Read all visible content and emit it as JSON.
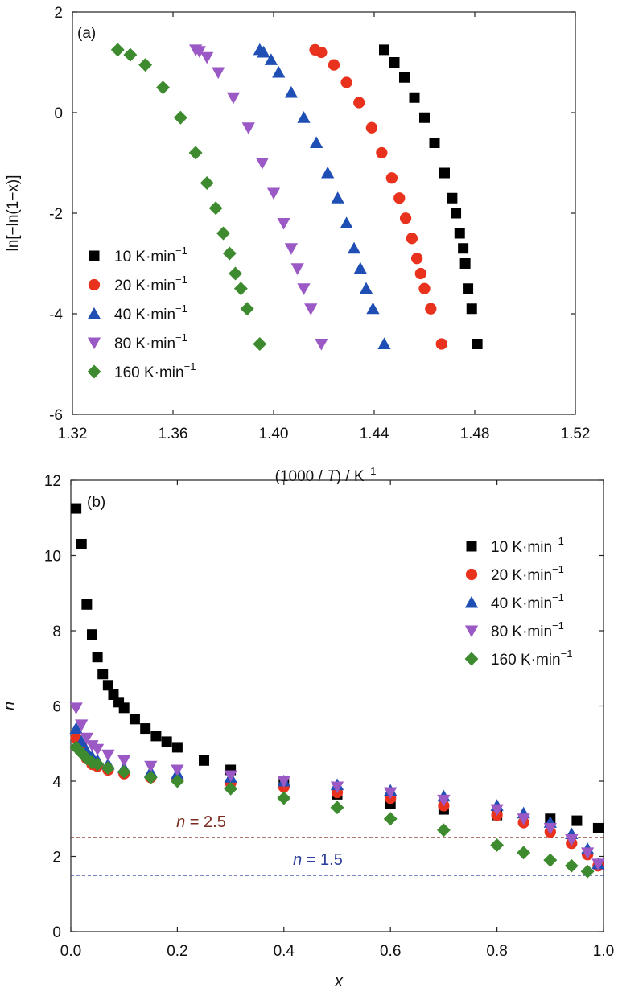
{
  "chart_data": [
    {
      "type": "scatter",
      "panel_label": "(a)",
      "xlabel_parts": [
        "(1000 / ",
        "T",
        ") / K",
        "−1"
      ],
      "ylabel": "ln[−ln(1−x)]",
      "xlim": [
        1.32,
        1.52
      ],
      "ylim": [
        -6,
        2
      ],
      "x_ticks": [
        1.32,
        1.36,
        1.4,
        1.44,
        1.48,
        1.52
      ],
      "x_tick_labels": [
        "1.32",
        "1.36",
        "1.40",
        "1.44",
        "1.48",
        "1.52"
      ],
      "y_ticks": [
        -6,
        -4,
        -2,
        0,
        2
      ],
      "y_tick_labels": [
        "-6",
        "-4",
        "-2",
        "0",
        "2"
      ],
      "legend_position": "lower-left",
      "series": [
        {
          "name": "10 K·min−1",
          "legend_main": "10 K·min",
          "legend_sup": "−1",
          "marker": "square",
          "color": "#000000",
          "x": [
            1.481,
            1.4788,
            1.4773,
            1.4762,
            1.4754,
            1.474,
            1.4725,
            1.471,
            1.468,
            1.464,
            1.46,
            1.456,
            1.452,
            1.448,
            1.444
          ],
          "y": [
            -4.6,
            -3.9,
            -3.5,
            -3.0,
            -2.7,
            -2.4,
            -2.0,
            -1.7,
            -1.2,
            -0.6,
            -0.1,
            0.3,
            0.7,
            1.0,
            1.25
          ]
        },
        {
          "name": "20 K·min−1",
          "legend_main": "20 K·min",
          "legend_sup": "−1",
          "marker": "circle",
          "color": "#e8321e",
          "x": [
            1.4668,
            1.4625,
            1.46,
            1.4585,
            1.457,
            1.455,
            1.4525,
            1.45,
            1.447,
            1.443,
            1.439,
            1.434,
            1.429,
            1.424,
            1.419,
            1.4165
          ],
          "y": [
            -4.6,
            -3.9,
            -3.5,
            -3.2,
            -2.9,
            -2.5,
            -2.1,
            -1.7,
            -1.3,
            -0.8,
            -0.3,
            0.2,
            0.6,
            0.95,
            1.2,
            1.25
          ]
        },
        {
          "name": "40 K·min−1",
          "legend_main": "40 K·min",
          "legend_sup": "−1",
          "marker": "triangle-up",
          "color": "#1f4fb4",
          "x": [
            1.444,
            1.4395,
            1.4368,
            1.4345,
            1.432,
            1.429,
            1.4255,
            1.4215,
            1.417,
            1.412,
            1.407,
            1.402,
            1.399,
            1.396,
            1.3945
          ],
          "y": [
            -4.6,
            -3.9,
            -3.5,
            -3.1,
            -2.7,
            -2.2,
            -1.7,
            -1.2,
            -0.6,
            -0.1,
            0.4,
            0.8,
            1.05,
            1.2,
            1.25
          ]
        },
        {
          "name": "80 K·min−1",
          "legend_main": "80 K·min",
          "legend_sup": "−1",
          "marker": "triangle-down",
          "color": "#9b59c6",
          "x": [
            1.419,
            1.4148,
            1.412,
            1.4095,
            1.407,
            1.404,
            1.4,
            1.3955,
            1.39,
            1.384,
            1.378,
            1.3735,
            1.3705,
            1.369
          ],
          "y": [
            -4.6,
            -3.9,
            -3.5,
            -3.1,
            -2.7,
            -2.2,
            -1.6,
            -1.0,
            -0.3,
            0.3,
            0.8,
            1.1,
            1.22,
            1.25
          ]
        },
        {
          "name": "160 K·min−1",
          "legend_main": "160 K·min",
          "legend_sup": "−1",
          "marker": "diamond",
          "color": "#3d8a2f",
          "x": [
            1.3945,
            1.3895,
            1.387,
            1.3848,
            1.3825,
            1.38,
            1.377,
            1.3735,
            1.369,
            1.363,
            1.356,
            1.349,
            1.343,
            1.338
          ],
          "y": [
            -4.6,
            -3.9,
            -3.5,
            -3.2,
            -2.8,
            -2.4,
            -1.9,
            -1.4,
            -0.8,
            -0.1,
            0.5,
            0.95,
            1.15,
            1.25
          ]
        }
      ]
    },
    {
      "type": "scatter",
      "panel_label": "(b)",
      "xlabel": "x",
      "ylabel": "n",
      "xlim": [
        0.0,
        1.0
      ],
      "ylim": [
        0,
        12
      ],
      "x_ticks": [
        0.0,
        0.2,
        0.4,
        0.6,
        0.8,
        1.0
      ],
      "x_tick_labels": [
        "0.0",
        "0.2",
        "0.4",
        "0.6",
        "0.8",
        "1.0"
      ],
      "y_ticks": [
        0,
        2,
        4,
        6,
        8,
        10,
        12
      ],
      "y_tick_labels": [
        "0",
        "2",
        "4",
        "6",
        "8",
        "10",
        "12"
      ],
      "legend_position": "top-right",
      "reference_lines": [
        {
          "label_italic": "n",
          "label_rest": " = 2.5",
          "value": 2.5,
          "color": "#7a2a1e"
        },
        {
          "label_italic": "n",
          "label_rest": " = 1.5",
          "value": 1.5,
          "color": "#2a3c9c"
        }
      ],
      "series": [
        {
          "name": "10 K·min−1",
          "legend_main": "10 K·min",
          "legend_sup": "−1",
          "marker": "square",
          "color": "#000000",
          "x": [
            0.01,
            0.02,
            0.03,
            0.04,
            0.05,
            0.06,
            0.07,
            0.08,
            0.09,
            0.1,
            0.12,
            0.14,
            0.16,
            0.18,
            0.2,
            0.25,
            0.3,
            0.4,
            0.5,
            0.6,
            0.7,
            0.8,
            0.9,
            0.95,
            0.99
          ],
          "y": [
            11.25,
            10.3,
            8.7,
            7.9,
            7.3,
            6.85,
            6.55,
            6.3,
            6.1,
            5.95,
            5.65,
            5.4,
            5.2,
            5.05,
            4.9,
            4.55,
            4.3,
            3.95,
            3.65,
            3.4,
            3.25,
            3.1,
            3.0,
            2.95,
            2.75
          ]
        },
        {
          "name": "20 K·min−1",
          "legend_main": "20 K·min",
          "legend_sup": "−1",
          "marker": "circle",
          "color": "#e8321e",
          "x": [
            0.01,
            0.02,
            0.03,
            0.04,
            0.05,
            0.07,
            0.1,
            0.15,
            0.2,
            0.3,
            0.4,
            0.5,
            0.6,
            0.7,
            0.8,
            0.85,
            0.9,
            0.94,
            0.97,
            0.99
          ],
          "y": [
            5.15,
            4.95,
            4.6,
            4.45,
            4.4,
            4.3,
            4.2,
            4.1,
            4.05,
            3.95,
            3.85,
            3.7,
            3.55,
            3.35,
            3.1,
            2.9,
            2.65,
            2.35,
            2.05,
            1.75
          ]
        },
        {
          "name": "40 K·min−1",
          "legend_main": "40 K·min",
          "legend_sup": "−1",
          "marker": "triangle-up",
          "color": "#1f4fb4",
          "x": [
            0.01,
            0.02,
            0.03,
            0.04,
            0.05,
            0.07,
            0.1,
            0.15,
            0.2,
            0.3,
            0.4,
            0.5,
            0.6,
            0.7,
            0.8,
            0.85,
            0.9,
            0.94,
            0.97,
            0.99
          ],
          "y": [
            5.4,
            5.05,
            4.8,
            4.65,
            4.55,
            4.45,
            4.35,
            4.25,
            4.2,
            4.1,
            4.0,
            3.9,
            3.75,
            3.6,
            3.35,
            3.15,
            2.9,
            2.6,
            2.2,
            1.8
          ]
        },
        {
          "name": "80 K·min−1",
          "legend_main": "80 K·min",
          "legend_sup": "−1",
          "marker": "triangle-down",
          "color": "#9b59c6",
          "x": [
            0.01,
            0.02,
            0.03,
            0.04,
            0.05,
            0.07,
            0.1,
            0.15,
            0.2,
            0.3,
            0.4,
            0.5,
            0.6,
            0.7,
            0.8,
            0.85,
            0.9,
            0.94,
            0.97,
            0.99
          ],
          "y": [
            5.95,
            5.5,
            5.15,
            4.95,
            4.85,
            4.7,
            4.55,
            4.4,
            4.3,
            4.15,
            4.0,
            3.85,
            3.7,
            3.5,
            3.25,
            3.0,
            2.75,
            2.45,
            2.1,
            1.8
          ]
        },
        {
          "name": "160 K·min−1",
          "legend_main": "160 K·min",
          "legend_sup": "−1",
          "marker": "diamond",
          "color": "#3d8a2f",
          "x": [
            0.01,
            0.02,
            0.03,
            0.04,
            0.05,
            0.07,
            0.1,
            0.15,
            0.2,
            0.3,
            0.4,
            0.5,
            0.6,
            0.7,
            0.8,
            0.85,
            0.9,
            0.94,
            0.97
          ],
          "y": [
            4.9,
            4.75,
            4.6,
            4.5,
            4.45,
            4.35,
            4.25,
            4.1,
            4.0,
            3.8,
            3.55,
            3.3,
            3.0,
            2.7,
            2.3,
            2.1,
            1.9,
            1.75,
            1.6
          ]
        }
      ]
    }
  ]
}
